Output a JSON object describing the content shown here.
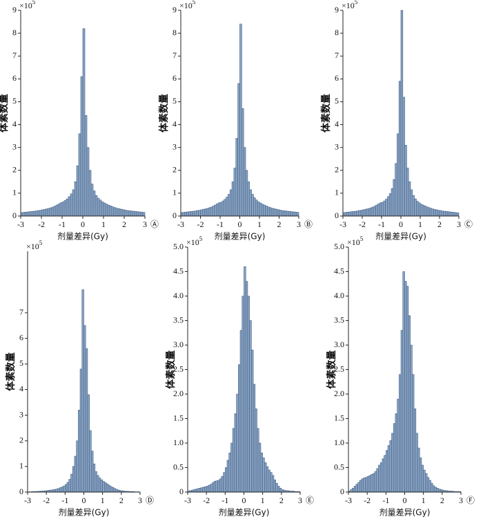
{
  "chart_data": [
    {
      "type": "histogram",
      "panel": "Ⓐ",
      "xlabel": "剂量差异(Gy)",
      "ylabel": "体素数量",
      "multiplier": {
        "base": "×10",
        "exponent": "5"
      },
      "color": "#8aa3c2",
      "edgecolor": "#3e5e86",
      "bins": [
        -3,
        -2.9,
        -2.8,
        -2.7,
        -2.6,
        -2.5,
        -2.4,
        -2.3,
        -2.2,
        -2.1,
        -2,
        -1.9,
        -1.8,
        -1.7,
        -1.6,
        -1.5,
        -1.4,
        -1.3,
        -1.2,
        -1.1,
        -1,
        -0.9,
        -0.8,
        -0.7,
        -0.6,
        -0.5,
        -0.4,
        -0.3,
        -0.2,
        -0.1,
        0,
        0.1,
        0.2,
        0.3,
        0.4,
        0.5,
        0.6,
        0.7,
        0.8,
        0.9,
        1,
        1.1,
        1.2,
        1.3,
        1.4,
        1.5,
        1.6,
        1.7,
        1.8,
        1.9,
        2,
        2.1,
        2.2,
        2.3,
        2.4,
        2.5,
        2.6,
        2.7,
        2.8,
        2.9,
        3
      ],
      "values": [
        0.15,
        0.16,
        0.17,
        0.18,
        0.19,
        0.2,
        0.21,
        0.22,
        0.24,
        0.25,
        0.27,
        0.29,
        0.31,
        0.33,
        0.36,
        0.39,
        0.43,
        0.48,
        0.53,
        0.58,
        0.62,
        0.68,
        0.75,
        0.85,
        0.97,
        1.15,
        1.5,
        2.2,
        3.6,
        6.1,
        8.2,
        4.4,
        3.0,
        2.0,
        1.4,
        1.1,
        0.9,
        0.78,
        0.7,
        0.62,
        0.57,
        0.52,
        0.48,
        0.44,
        0.4,
        0.37,
        0.34,
        0.32,
        0.3,
        0.28,
        0.26,
        0.24,
        0.23,
        0.22,
        0.21,
        0.2,
        0.19,
        0.18,
        0.17,
        0.16
      ],
      "xlim": [
        -3,
        3
      ],
      "xticks": [
        -3,
        -2,
        -1,
        0,
        1,
        2,
        3
      ],
      "ylim": [
        0,
        9
      ],
      "yticks": [
        0,
        1,
        2,
        3,
        4,
        5,
        6,
        7,
        8,
        9
      ]
    },
    {
      "type": "histogram",
      "panel": "Ⓑ",
      "xlabel": "剂量差异(Gy)",
      "ylabel": "体素数量",
      "multiplier": {
        "base": "×10",
        "exponent": "5"
      },
      "color": "#8aa3c2",
      "edgecolor": "#3e5e86",
      "bins": [
        -3,
        -2.9,
        -2.8,
        -2.7,
        -2.6,
        -2.5,
        -2.4,
        -2.3,
        -2.2,
        -2.1,
        -2,
        -1.9,
        -1.8,
        -1.7,
        -1.6,
        -1.5,
        -1.4,
        -1.3,
        -1.2,
        -1.1,
        -1,
        -0.9,
        -0.8,
        -0.7,
        -0.6,
        -0.5,
        -0.4,
        -0.3,
        -0.2,
        -0.1,
        0,
        0.1,
        0.2,
        0.3,
        0.4,
        0.5,
        0.6,
        0.7,
        0.8,
        0.9,
        1,
        1.1,
        1.2,
        1.3,
        1.4,
        1.5,
        1.6,
        1.7,
        1.8,
        1.9,
        2,
        2.1,
        2.2,
        2.3,
        2.4,
        2.5,
        2.6,
        2.7,
        2.8,
        2.9,
        3
      ],
      "values": [
        0.15,
        0.16,
        0.17,
        0.18,
        0.19,
        0.2,
        0.21,
        0.22,
        0.24,
        0.25,
        0.27,
        0.29,
        0.31,
        0.33,
        0.36,
        0.39,
        0.43,
        0.48,
        0.53,
        0.58,
        0.6,
        0.66,
        0.73,
        0.83,
        0.95,
        1.15,
        1.5,
        2.1,
        3.4,
        5.8,
        8.4,
        4.7,
        3.0,
        2.0,
        1.5,
        1.15,
        0.95,
        0.8,
        0.7,
        0.62,
        0.57,
        0.52,
        0.48,
        0.44,
        0.4,
        0.37,
        0.34,
        0.32,
        0.3,
        0.28,
        0.26,
        0.24,
        0.23,
        0.22,
        0.21,
        0.2,
        0.19,
        0.18,
        0.17,
        0.16
      ],
      "xlim": [
        -3,
        3
      ],
      "xticks": [
        -3,
        -2,
        -1,
        0,
        1,
        2,
        3
      ],
      "ylim": [
        0,
        9
      ],
      "yticks": [
        0,
        1,
        2,
        3,
        4,
        5,
        6,
        7,
        8,
        9
      ]
    },
    {
      "type": "histogram",
      "panel": "Ⓒ",
      "xlabel": "剂量差异(Gy)",
      "ylabel": "体素数量",
      "multiplier": {
        "base": "×10",
        "exponent": "5"
      },
      "color": "#8aa3c2",
      "edgecolor": "#3e5e86",
      "bins": [
        -3,
        -2.9,
        -2.8,
        -2.7,
        -2.6,
        -2.5,
        -2.4,
        -2.3,
        -2.2,
        -2.1,
        -2,
        -1.9,
        -1.8,
        -1.7,
        -1.6,
        -1.5,
        -1.4,
        -1.3,
        -1.2,
        -1.1,
        -1,
        -0.9,
        -0.8,
        -0.7,
        -0.6,
        -0.5,
        -0.4,
        -0.3,
        -0.2,
        -0.1,
        0,
        0.1,
        0.2,
        0.3,
        0.4,
        0.5,
        0.6,
        0.7,
        0.8,
        0.9,
        1,
        1.1,
        1.2,
        1.3,
        1.4,
        1.5,
        1.6,
        1.7,
        1.8,
        1.9,
        2,
        2.1,
        2.2,
        2.3,
        2.4,
        2.5,
        2.6,
        2.7,
        2.8,
        2.9,
        3
      ],
      "values": [
        0.15,
        0.16,
        0.17,
        0.18,
        0.19,
        0.2,
        0.21,
        0.22,
        0.24,
        0.25,
        0.27,
        0.29,
        0.31,
        0.33,
        0.36,
        0.39,
        0.43,
        0.48,
        0.53,
        0.58,
        0.6,
        0.66,
        0.74,
        0.85,
        0.98,
        1.2,
        1.6,
        2.3,
        3.6,
        5.9,
        9.0,
        5.2,
        3.1,
        2.1,
        1.5,
        1.15,
        0.9,
        0.75,
        0.65,
        0.58,
        0.52,
        0.48,
        0.44,
        0.4,
        0.37,
        0.34,
        0.31,
        0.29,
        0.27,
        0.25,
        0.24,
        0.22,
        0.21,
        0.2,
        0.19,
        0.18,
        0.17,
        0.16,
        0.15,
        0.14
      ],
      "xlim": [
        -3,
        3
      ],
      "xticks": [
        -3,
        -2,
        -1,
        0,
        1,
        2,
        3
      ],
      "ylim": [
        0,
        9
      ],
      "yticks": [
        0,
        1,
        2,
        3,
        4,
        5,
        6,
        7,
        8,
        9
      ]
    },
    {
      "type": "histogram",
      "panel": "Ⓓ",
      "xlabel": "剂量差异(Gy)",
      "ylabel": "体素数量",
      "multiplier": {
        "base": "×10",
        "exponent": "5"
      },
      "color": "#8aa3c2",
      "edgecolor": "#3e5e86",
      "bins": [
        -3,
        -2.9,
        -2.8,
        -2.7,
        -2.6,
        -2.5,
        -2.4,
        -2.3,
        -2.2,
        -2.1,
        -2,
        -1.9,
        -1.8,
        -1.7,
        -1.6,
        -1.5,
        -1.4,
        -1.3,
        -1.2,
        -1.1,
        -1,
        -0.9,
        -0.8,
        -0.7,
        -0.6,
        -0.5,
        -0.4,
        -0.3,
        -0.2,
        -0.1,
        0,
        0.1,
        0.2,
        0.3,
        0.4,
        0.5,
        0.6,
        0.7,
        0.8,
        0.9,
        1,
        1.1,
        1.2,
        1.3,
        1.4,
        1.5,
        1.6,
        1.7,
        1.8,
        1.9,
        2,
        2.1,
        2.2,
        2.3,
        2.4,
        2.5,
        2.6,
        2.7,
        2.8,
        2.9,
        3
      ],
      "values": [
        0.01,
        0.01,
        0.02,
        0.02,
        0.02,
        0.03,
        0.03,
        0.04,
        0.04,
        0.05,
        0.06,
        0.07,
        0.08,
        0.09,
        0.1,
        0.12,
        0.14,
        0.17,
        0.2,
        0.24,
        0.3,
        0.38,
        0.5,
        0.7,
        1.0,
        1.4,
        2.0,
        3.2,
        4.8,
        7.9,
        6.5,
        5.6,
        3.8,
        2.4,
        1.6,
        1.1,
        0.8,
        0.65,
        0.55,
        0.48,
        0.42,
        0.37,
        0.32,
        0.27,
        0.22,
        0.18,
        0.14,
        0.11,
        0.08,
        0.06,
        0.05,
        0.04,
        0.03,
        0.03,
        0.02,
        0.02,
        0.02,
        0.01,
        0.01,
        0.01
      ],
      "xlim": [
        -3,
        3
      ],
      "xticks": [
        -3,
        -2,
        -1,
        0,
        1,
        2,
        3
      ],
      "ylim": [
        0,
        9.4
      ],
      "yticks": [
        0,
        1,
        2,
        3,
        4,
        5,
        6,
        7
      ]
    },
    {
      "type": "histogram",
      "panel": "Ⓔ",
      "xlabel": "剂量差异(Gy)",
      "ylabel": "体素数量",
      "multiplier": {
        "base": "×10",
        "exponent": "5"
      },
      "color": "#8aa3c2",
      "edgecolor": "#3e5e86",
      "bins": [
        -3,
        -2.9,
        -2.8,
        -2.7,
        -2.6,
        -2.5,
        -2.4,
        -2.3,
        -2.2,
        -2.1,
        -2,
        -1.9,
        -1.8,
        -1.7,
        -1.6,
        -1.5,
        -1.4,
        -1.3,
        -1.2,
        -1.1,
        -1,
        -0.9,
        -0.8,
        -0.7,
        -0.6,
        -0.5,
        -0.4,
        -0.3,
        -0.2,
        -0.1,
        0,
        0.1,
        0.2,
        0.3,
        0.4,
        0.5,
        0.6,
        0.7,
        0.8,
        0.9,
        1,
        1.1,
        1.2,
        1.3,
        1.4,
        1.5,
        1.6,
        1.7,
        1.8,
        1.9,
        2,
        2.1,
        2.2,
        2.3,
        2.4,
        2.5,
        2.6,
        2.7,
        2.8,
        2.9,
        3
      ],
      "values": [
        0.02,
        0.03,
        0.04,
        0.05,
        0.06,
        0.07,
        0.08,
        0.09,
        0.1,
        0.11,
        0.12,
        0.14,
        0.16,
        0.19,
        0.22,
        0.23,
        0.24,
        0.27,
        0.32,
        0.4,
        0.5,
        0.65,
        0.8,
        1.0,
        1.3,
        1.6,
        2.0,
        2.6,
        3.3,
        4.0,
        4.6,
        4.3,
        4.0,
        3.5,
        2.9,
        2.2,
        1.7,
        1.3,
        1.0,
        0.8,
        0.7,
        0.6,
        0.52,
        0.45,
        0.4,
        0.34,
        0.25,
        0.18,
        0.12,
        0.08,
        0.05,
        0.04,
        0.03,
        0.03,
        0.02,
        0.02,
        0.02,
        0.01,
        0.01,
        0.01
      ],
      "xlim": [
        -3,
        3
      ],
      "xticks": [
        -3,
        -2,
        -1,
        0,
        1,
        2,
        3
      ],
      "ylim": [
        0,
        5
      ],
      "yticks": [
        0,
        0.5,
        {
          "value": 1,
          "label": "1.0"
        },
        1.5,
        {
          "value": 2,
          "label": "2.0"
        },
        2.5,
        {
          "value": 3,
          "label": "3.0"
        },
        3.5,
        {
          "value": 4,
          "label": "4.0"
        },
        4.5,
        {
          "value": 5,
          "label": "5.0"
        }
      ]
    },
    {
      "type": "histogram",
      "panel": "Ⓕ",
      "xlabel": "剂量差异(Gy)",
      "ylabel": "体素数量",
      "multiplier": {
        "base": "×10",
        "exponent": "5"
      },
      "color": "#8aa3c2",
      "edgecolor": "#3e5e86",
      "bins": [
        -3,
        -2.9,
        -2.8,
        -2.7,
        -2.6,
        -2.5,
        -2.4,
        -2.3,
        -2.2,
        -2.1,
        -2,
        -1.9,
        -1.8,
        -1.7,
        -1.6,
        -1.5,
        -1.4,
        -1.3,
        -1.2,
        -1.1,
        -1,
        -0.9,
        -0.8,
        -0.7,
        -0.6,
        -0.5,
        -0.4,
        -0.3,
        -0.2,
        -0.1,
        0,
        0.1,
        0.2,
        0.3,
        0.4,
        0.5,
        0.6,
        0.7,
        0.8,
        0.9,
        1,
        1.1,
        1.2,
        1.3,
        1.4,
        1.5,
        1.6,
        1.7,
        1.8,
        1.9,
        2,
        2.1,
        2.2,
        2.3,
        2.4,
        2.5,
        2.6,
        2.7,
        2.8,
        2.9,
        3
      ],
      "values": [
        0.02,
        0.05,
        0.08,
        0.12,
        0.16,
        0.2,
        0.24,
        0.27,
        0.29,
        0.3,
        0.32,
        0.34,
        0.36,
        0.38,
        0.42,
        0.48,
        0.55,
        0.6,
        0.68,
        0.75,
        0.85,
        0.95,
        1.05,
        1.2,
        1.4,
        1.6,
        1.9,
        2.4,
        3.3,
        4.5,
        4.3,
        4.2,
        3.6,
        3.0,
        2.4,
        1.7,
        1.2,
        0.9,
        0.7,
        0.55,
        0.45,
        0.38,
        0.3,
        0.24,
        0.18,
        0.13,
        0.1,
        0.08,
        0.06,
        0.05,
        0.04,
        0.03,
        0.03,
        0.02,
        0.02,
        0.02,
        0.01,
        0.01,
        0.01,
        0.01
      ],
      "xlim": [
        -3,
        3
      ],
      "xticks": [
        -3,
        -2,
        -1,
        0,
        1,
        2,
        3
      ],
      "ylim": [
        0,
        5
      ],
      "yticks": [
        0,
        0.5,
        {
          "value": 1,
          "label": "1.0"
        },
        1.5,
        {
          "value": 2,
          "label": "2.0"
        },
        2.5,
        {
          "value": 3,
          "label": "3.0"
        },
        3.5,
        {
          "value": 4,
          "label": "4.0"
        },
        4.5,
        {
          "value": 5,
          "label": "5.0"
        }
      ]
    }
  ]
}
